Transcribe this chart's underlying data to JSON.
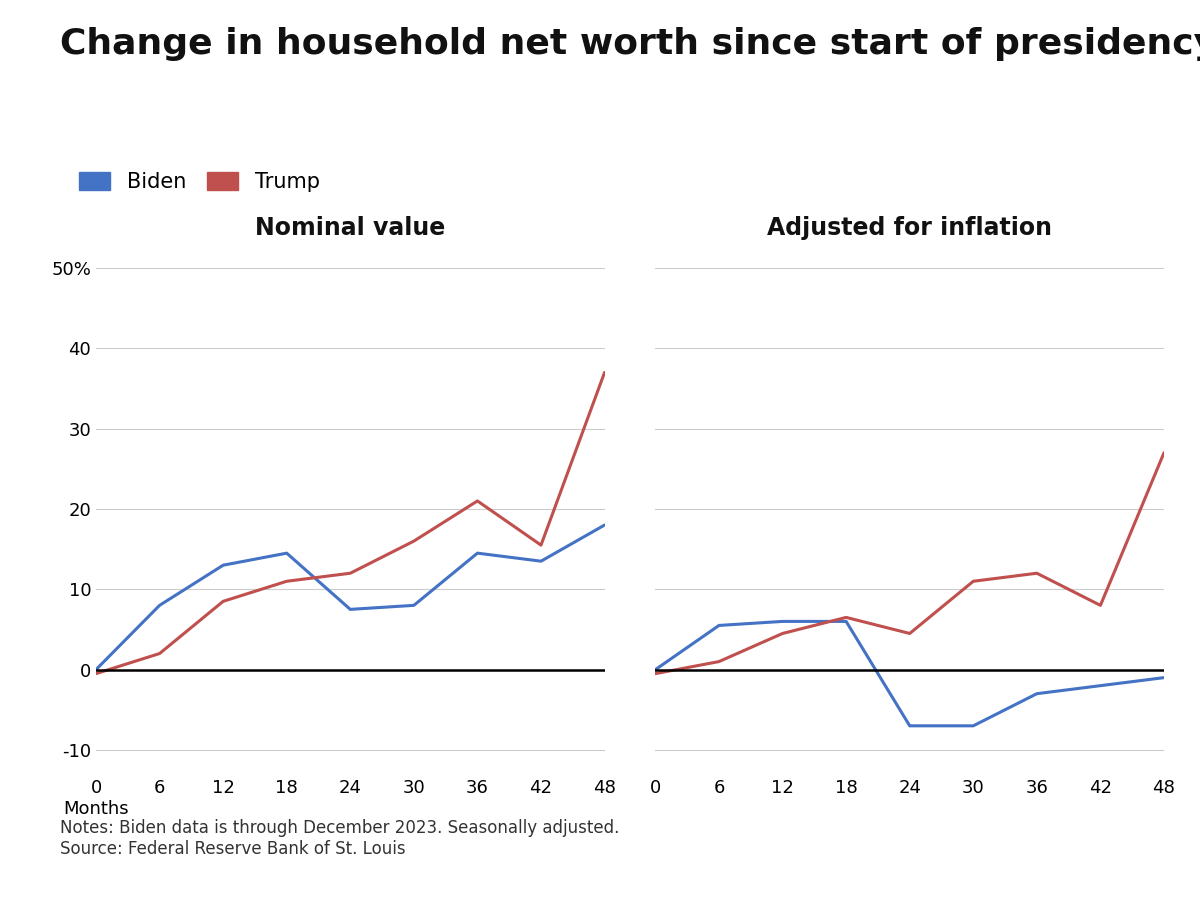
{
  "title": "Change in household net worth since start of presidency",
  "subtitle_left": "Nominal value",
  "subtitle_right": "Adjusted for inflation",
  "legend_labels": [
    "Biden",
    "Trump"
  ],
  "legend_colors": [
    "#4472C4",
    "#C0504D"
  ],
  "notes": "Notes: Biden data is through December 2023. Seasonally adjusted.\nSource: Federal Reserve Bank of St. Louis",
  "x_months": [
    0,
    6,
    12,
    18,
    24,
    30,
    36,
    42,
    48
  ],
  "nominal": {
    "biden": [
      0,
      8,
      13,
      14.5,
      7.5,
      8,
      14.5,
      13.5,
      18
    ],
    "trump": [
      -0.5,
      2,
      8.5,
      11,
      12,
      16,
      21,
      15.5,
      37
    ]
  },
  "inflation_adj": {
    "biden": [
      0,
      5.5,
      6,
      6,
      -7,
      -7,
      -3,
      -2,
      -1
    ],
    "trump": [
      -0.5,
      1,
      4.5,
      6.5,
      4.5,
      11,
      12,
      8,
      27
    ]
  },
  "ylim": [
    -13,
    52
  ],
  "yticks": [
    -10,
    0,
    10,
    20,
    30,
    40,
    50
  ],
  "bg_color": "#FFFFFF",
  "line_width": 2.2,
  "title_fontsize": 26,
  "subtitle_fontsize": 17,
  "tick_fontsize": 13,
  "legend_fontsize": 15,
  "notes_fontsize": 12
}
